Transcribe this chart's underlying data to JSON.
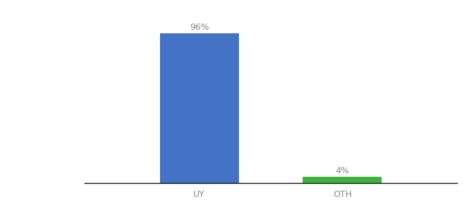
{
  "categories": [
    "UY",
    "OTH"
  ],
  "values": [
    96,
    4
  ],
  "bar_colors": [
    "#4472c4",
    "#3db33d"
  ],
  "ylim": [
    0,
    108
  ],
  "bar_width": 0.55,
  "background_color": "#ffffff",
  "label_fontsize": 9,
  "tick_fontsize": 9,
  "value_labels": [
    "96%",
    "4%"
  ],
  "xlim": [
    -0.8,
    1.8
  ]
}
